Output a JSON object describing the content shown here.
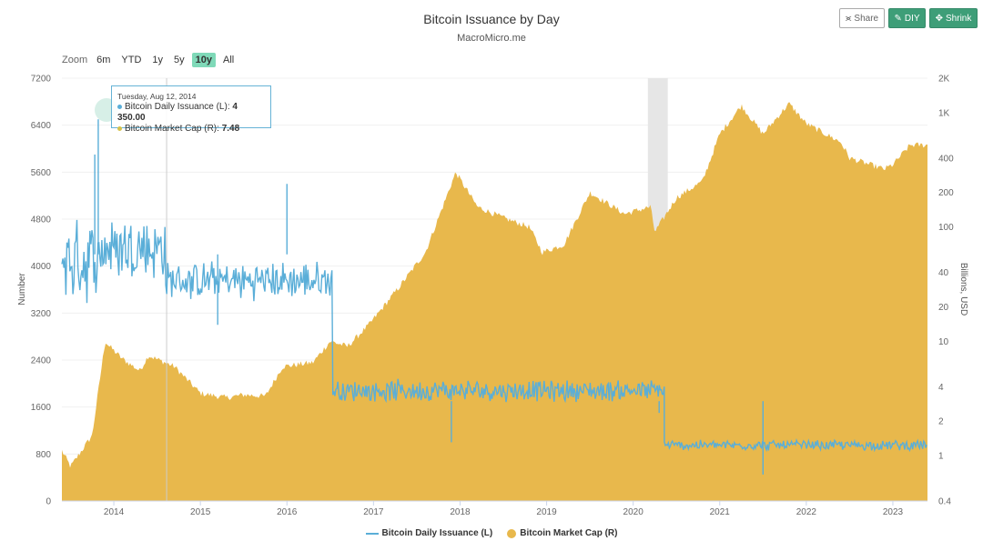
{
  "header": {
    "title": "Bitcoin Issuance by Day",
    "subtitle": "MacroMicro.me"
  },
  "toolbar": {
    "share_label": "Share",
    "diy_label": "DIY",
    "shrink_label": "Shrink",
    "share_icon": "share-icon",
    "diy_icon": "pencil-icon",
    "shrink_icon": "shrink-icon"
  },
  "zoom": {
    "label": "Zoom",
    "options": [
      "6m",
      "YTD",
      "1y",
      "5y",
      "10y",
      "All"
    ],
    "active": "10y"
  },
  "tooltip": {
    "date": "Tuesday, Aug 12, 2014",
    "issuance_label": "Bitcoin Daily Issuance (L):",
    "issuance_value": "4 350.00",
    "mcap_label": "Bitcoin Market Cap (R):",
    "mcap_value": "7.48"
  },
  "legend": {
    "issuance": "Bitcoin Daily Issuance (L)",
    "mcap": "Bitcoin Market Cap (R)"
  },
  "colors": {
    "issuance": "#5aaed8",
    "mcap": "#e8b84c",
    "highlight": "#e6e6e6"
  },
  "chart_data": {
    "type": "line",
    "left_axis": {
      "label": "Number",
      "ticks": [
        "0",
        "800",
        "1600",
        "2400",
        "3200",
        "4000",
        "4800",
        "5600",
        "6400",
        "7200"
      ],
      "range": [
        0,
        7200
      ]
    },
    "right_axis": {
      "label": "Billions, USD",
      "scale": "log",
      "ticks": [
        "0.4",
        "1",
        "2",
        "4",
        "10",
        "20",
        "40",
        "100",
        "200",
        "400",
        "1K",
        "2K"
      ],
      "tick_values": [
        0.4,
        1,
        2,
        4,
        10,
        20,
        40,
        100,
        200,
        400,
        1000,
        2000
      ],
      "range": [
        0.4,
        2000
      ]
    },
    "x_axis": {
      "ticks": [
        "2014",
        "2015",
        "2016",
        "2017",
        "2018",
        "2019",
        "2020",
        "2021",
        "2022",
        "2023"
      ],
      "range": [
        2013.4,
        2023.4
      ]
    },
    "highlight_band": [
      2020.17,
      2020.4
    ],
    "crosshair_x": 2014.61,
    "series": [
      {
        "name": "Bitcoin Daily Issuance (L)",
        "axis": "left",
        "segments": [
          {
            "from": 2013.4,
            "to": 2013.85,
            "mean": 4100,
            "noise": 650
          },
          {
            "from": 2013.85,
            "to": 2014.6,
            "mean": 4300,
            "noise": 550
          },
          {
            "from": 2014.6,
            "to": 2016.53,
            "mean": 3750,
            "noise": 300
          },
          {
            "from": 2016.53,
            "to": 2020.36,
            "mean": 1880,
            "noise": 170
          },
          {
            "from": 2020.36,
            "to": 2023.4,
            "mean": 950,
            "noise": 80
          }
        ],
        "spikes": [
          [
            2013.82,
            6500
          ],
          [
            2013.78,
            5900
          ],
          [
            2016.0,
            5400
          ],
          [
            2015.2,
            3000
          ],
          [
            2017.9,
            1000
          ],
          [
            2021.5,
            450
          ],
          [
            2020.3,
            1500
          ]
        ]
      },
      {
        "name": "Bitcoin Market Cap (R)",
        "axis": "right",
        "points": [
          [
            2013.4,
            1.1
          ],
          [
            2013.5,
            0.8
          ],
          [
            2013.75,
            1.5
          ],
          [
            2013.9,
            10
          ],
          [
            2013.95,
            9
          ],
          [
            2014.1,
            7
          ],
          [
            2014.3,
            5.5
          ],
          [
            2014.4,
            7.5
          ],
          [
            2014.7,
            6
          ],
          [
            2015.0,
            3.5
          ],
          [
            2015.3,
            3.2
          ],
          [
            2015.5,
            3.4
          ],
          [
            2015.75,
            3.3
          ],
          [
            2015.95,
            6
          ],
          [
            2016.3,
            6.5
          ],
          [
            2016.5,
            10
          ],
          [
            2016.7,
            9
          ],
          [
            2016.95,
            14
          ],
          [
            2017.3,
            30
          ],
          [
            2017.6,
            60
          ],
          [
            2017.95,
            300
          ],
          [
            2018.2,
            150
          ],
          [
            2018.5,
            120
          ],
          [
            2018.8,
            100
          ],
          [
            2018.95,
            60
          ],
          [
            2019.2,
            70
          ],
          [
            2019.5,
            200
          ],
          [
            2019.9,
            130
          ],
          [
            2020.2,
            150
          ],
          [
            2020.25,
            90
          ],
          [
            2020.5,
            180
          ],
          [
            2020.8,
            250
          ],
          [
            2021.0,
            650
          ],
          [
            2021.25,
            1150
          ],
          [
            2021.5,
            650
          ],
          [
            2021.8,
            1200
          ],
          [
            2022.0,
            800
          ],
          [
            2022.4,
            550
          ],
          [
            2022.5,
            400
          ],
          [
            2022.9,
            320
          ],
          [
            2023.0,
            350
          ],
          [
            2023.2,
            520
          ],
          [
            2023.4,
            520
          ]
        ]
      }
    ]
  }
}
